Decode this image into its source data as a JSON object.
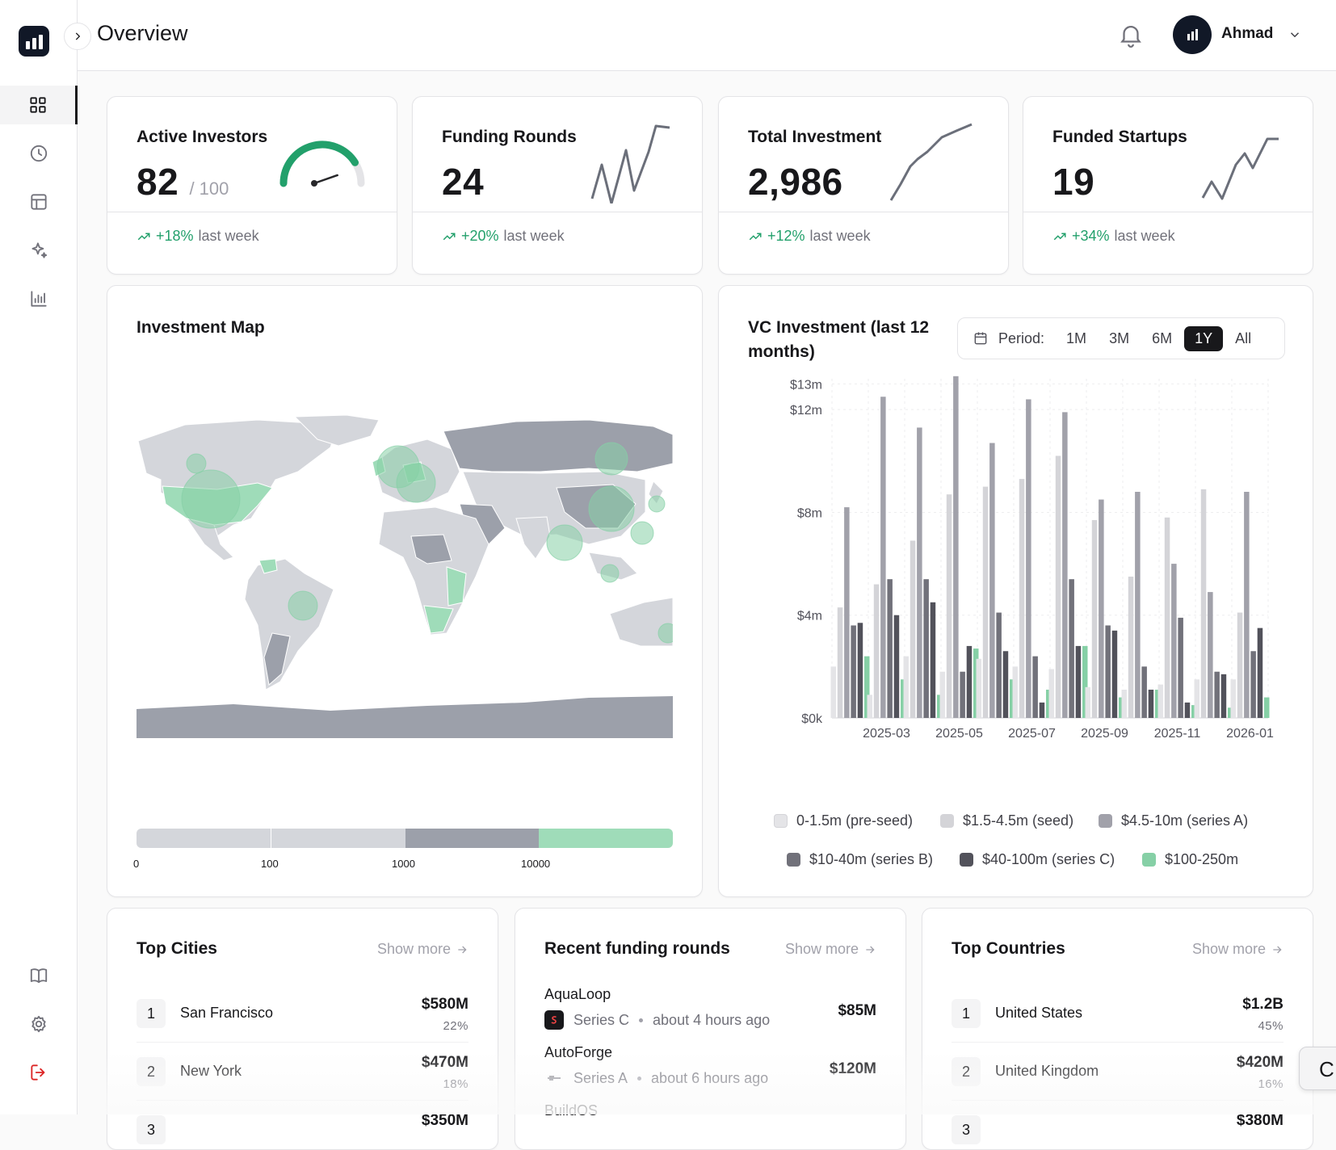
{
  "header": {
    "title": "Overview",
    "user_name": "Ahmad"
  },
  "sidebar": {
    "items": [
      {
        "name": "dashboard",
        "icon": "grid-icon",
        "active": true
      },
      {
        "name": "history",
        "icon": "clock-icon"
      },
      {
        "name": "table",
        "icon": "table-icon"
      },
      {
        "name": "ai",
        "icon": "sparkles-icon"
      },
      {
        "name": "reports",
        "icon": "bar-chart-icon"
      }
    ],
    "bottom": [
      {
        "name": "docs",
        "icon": "book-icon"
      },
      {
        "name": "settings",
        "icon": "gear-icon"
      },
      {
        "name": "logout",
        "icon": "logout-icon"
      }
    ]
  },
  "stats": [
    {
      "title": "Active Investors",
      "value": "82",
      "max": "/ 100",
      "delta": "+18%",
      "period": "last week",
      "gauge_fraction": 0.82
    },
    {
      "title": "Funding Rounds",
      "value": "24",
      "delta": "+20%",
      "period": "last week"
    },
    {
      "title": "Total Investment",
      "value": "2,986",
      "delta": "+12%",
      "period": "last week"
    },
    {
      "title": "Funded Startups",
      "value": "19",
      "delta": "+34%",
      "period": "last week"
    }
  ],
  "map": {
    "title": "Investment Map",
    "scale_labels": [
      "0",
      "100",
      "1000",
      "10000"
    ],
    "colors": {
      "land": "#d4d6db",
      "mid": "#9ca0aa",
      "high": "#9fdcb9",
      "bubble": "#86d0a6"
    }
  },
  "vc_chart": {
    "title": "VC Investment (last 12 months)",
    "period_label": "Period:",
    "period_options": [
      "1M",
      "3M",
      "6M",
      "1Y",
      "All"
    ],
    "period_selected": "1Y"
  },
  "chart_data": {
    "type": "bar",
    "categories": [
      "2025-02",
      "2025-03",
      "2025-04",
      "2025-05",
      "2025-06",
      "2025-07",
      "2025-08",
      "2025-09",
      "2025-10",
      "2025-11",
      "2025-12",
      "2026-01"
    ],
    "x_tick_labels": [
      "2025-03",
      "2025-05",
      "2025-07",
      "2025-09",
      "2025-11",
      "2026-01"
    ],
    "y_tick_labels": [
      "$13m",
      "$12m",
      "$8m",
      "$4m",
      "$0k"
    ],
    "y_ticks": [
      13,
      12,
      8,
      4,
      0
    ],
    "ylim": [
      0,
      13.2
    ],
    "series": [
      {
        "name": "0-1.5m (pre-seed)",
        "color": "#e4e4e7",
        "values": [
          2.0,
          0.9,
          2.4,
          1.8,
          2.3,
          2.0,
          1.9,
          1.2,
          1.1,
          1.3,
          1.5,
          1.5
        ]
      },
      {
        "name": "$1.5-4.5m (seed)",
        "color": "#d4d4d8",
        "values": [
          4.3,
          5.2,
          6.9,
          8.7,
          9.0,
          9.3,
          10.2,
          7.7,
          5.5,
          7.8,
          8.9,
          4.1
        ]
      },
      {
        "name": "$4.5-10m (series A)",
        "color": "#a1a1aa",
        "values": [
          8.2,
          12.5,
          11.3,
          13.3,
          10.7,
          12.4,
          11.9,
          8.5,
          8.8,
          6.0,
          4.9,
          8.8
        ]
      },
      {
        "name": "$10-40m (series B)",
        "color": "#71717a",
        "values": [
          3.6,
          5.4,
          5.4,
          1.8,
          4.1,
          2.4,
          5.4,
          3.6,
          2.0,
          3.9,
          1.8,
          2.6
        ]
      },
      {
        "name": "$40-100m (series C)",
        "color": "#52525b",
        "values": [
          3.7,
          4.0,
          4.5,
          2.8,
          2.6,
          0.6,
          2.8,
          3.4,
          1.1,
          0.6,
          1.7,
          3.5
        ]
      },
      {
        "name": "$100-250m",
        "color": "#86d0a6",
        "values": [
          2.4,
          1.5,
          0.9,
          2.7,
          1.5,
          1.1,
          2.8,
          0.8,
          1.1,
          0.5,
          0.4,
          0.8
        ]
      }
    ],
    "legend_position": "bottom",
    "grid": true
  },
  "top_cities": {
    "title": "Top Cities",
    "show_more": "Show more",
    "rows": [
      {
        "rank": "1",
        "name": "San Francisco",
        "amount": "$580M",
        "pct": "22%"
      },
      {
        "rank": "2",
        "name": "New York",
        "amount": "$470M",
        "pct": "18%"
      },
      {
        "rank": "3",
        "name": "",
        "amount": "$350M",
        "pct": ""
      }
    ]
  },
  "recent_rounds": {
    "title": "Recent funding rounds",
    "show_more": "Show more",
    "rows": [
      {
        "name": "AquaLoop",
        "series": "Series C",
        "time": "about 4 hours ago",
        "amount": "$85M"
      },
      {
        "name": "AutoForge",
        "series": "Series A",
        "time": "about 6 hours ago",
        "amount": "$120M"
      },
      {
        "name": "BuildOS",
        "series": "",
        "time": "",
        "amount": ""
      }
    ]
  },
  "top_countries": {
    "title": "Top Countries",
    "show_more": "Show more",
    "rows": [
      {
        "rank": "1",
        "name": "United States",
        "amount": "$1.2B",
        "pct": "45%"
      },
      {
        "rank": "2",
        "name": "United Kingdom",
        "amount": "$420M",
        "pct": "16%"
      },
      {
        "rank": "3",
        "name": "",
        "amount": "$380M",
        "pct": ""
      }
    ]
  },
  "floating_button": {
    "label": "C"
  }
}
